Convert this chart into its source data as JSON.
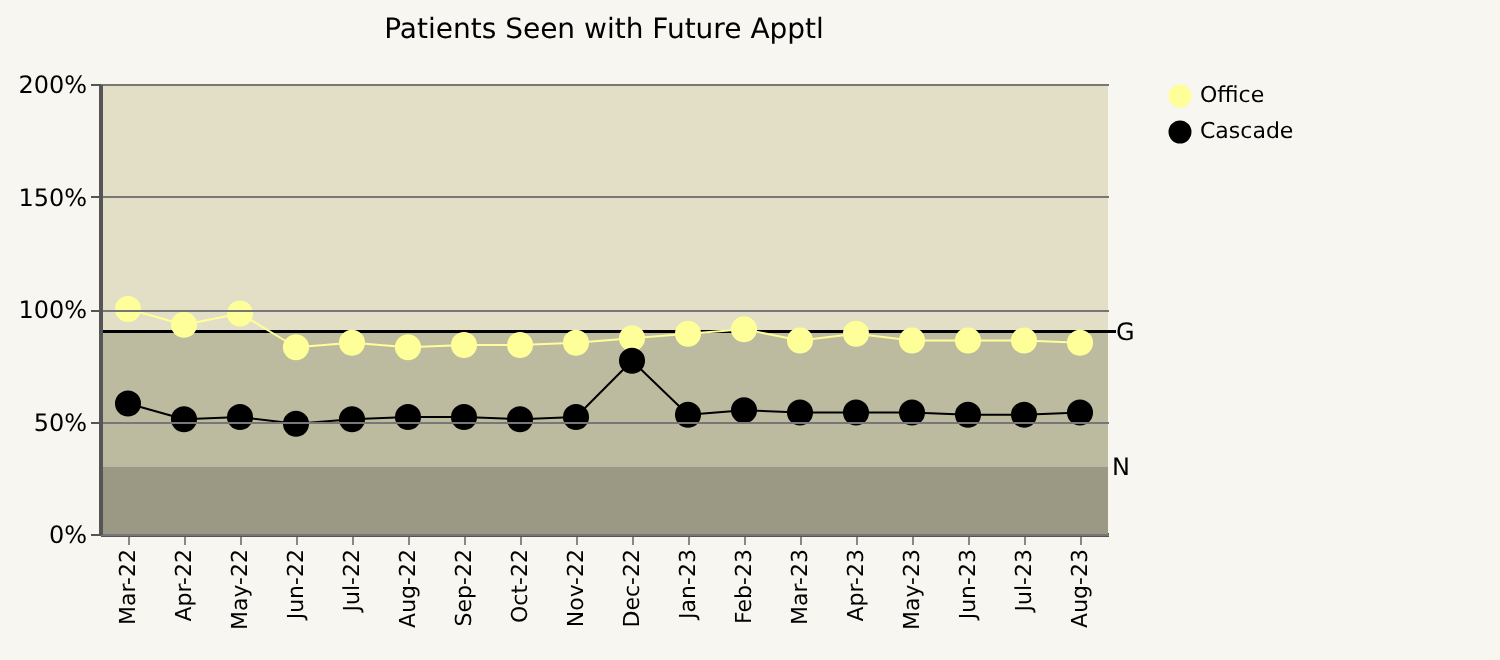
{
  "chart_data": {
    "type": "line",
    "title": "Patients Seen with Future Apptl",
    "categories": [
      "Mar-22",
      "Apr-22",
      "May-22",
      "Jun-22",
      "Jul-22",
      "Aug-22",
      "Sep-22",
      "Oct-22",
      "Nov-22",
      "Dec-22",
      "Jan-23",
      "Feb-23",
      "Mar-23",
      "Apr-23",
      "May-23",
      "Jun-23",
      "Jul-23",
      "Aug-23"
    ],
    "series": [
      {
        "name": "Office",
        "color": "#ffff99",
        "values": [
          100,
          93,
          98,
          83,
          85,
          83,
          84,
          84,
          85,
          87,
          89,
          91,
          86,
          89,
          86,
          86,
          86,
          85
        ]
      },
      {
        "name": "Cascade",
        "color": "#000000",
        "values": [
          58,
          51,
          52,
          49,
          51,
          52,
          52,
          51,
          52,
          77,
          53,
          55,
          54,
          54,
          54,
          53,
          53,
          54
        ]
      }
    ],
    "ylim": [
      0,
      200
    ],
    "yticks": [
      {
        "value": 0,
        "label": "0%"
      },
      {
        "value": 50,
        "label": "50%"
      },
      {
        "value": 100,
        "label": "100%"
      },
      {
        "value": 150,
        "label": "150%"
      },
      {
        "value": 200,
        "label": "200%"
      }
    ],
    "bands": [
      {
        "axis": "y",
        "from": 90,
        "to": 200,
        "color": "#e3dfc7"
      },
      {
        "axis": "y",
        "from": 30,
        "to": 90,
        "color": "#bdbb9f"
      },
      {
        "axis": "y",
        "from": 0,
        "to": 30,
        "color": "#9b9883",
        "label": "N"
      }
    ],
    "ref_lines": [
      {
        "axis": "y",
        "value": 90,
        "label": "G",
        "color": "#000000"
      }
    ],
    "grid": "y",
    "legend": "right",
    "marker": "circle",
    "line_style": "solid"
  }
}
